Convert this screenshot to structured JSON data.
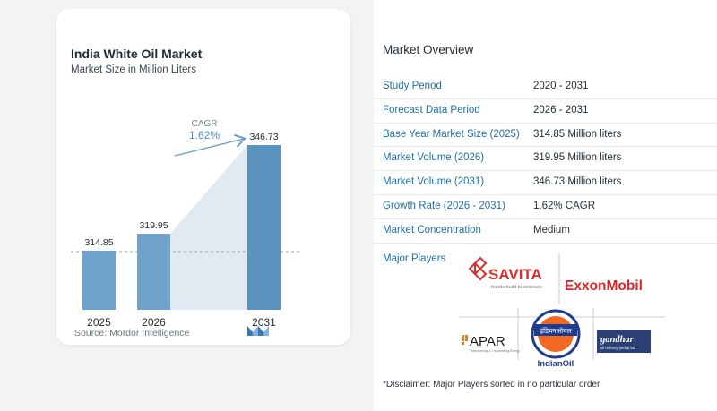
{
  "chart": {
    "title": "India White Oil Market",
    "subtitle": "Market Size in Million Liters",
    "cagr_label": "CAGR",
    "cagr_value": "1.62%",
    "source": "Source:  Mordor Intelligence"
  },
  "chart_data": {
    "type": "bar",
    "categories": [
      "2025",
      "2026",
      "2031"
    ],
    "values": [
      314.85,
      319.95,
      346.73
    ],
    "value_labels": [
      "314.85",
      "319.95",
      "346.73"
    ],
    "title": "India White Oil Market",
    "subtitle": "Market Size in Million Liters",
    "xlabel": "",
    "ylabel": "",
    "ylim": [
      0,
      346.73
    ],
    "grid": false,
    "annotations": [
      "CAGR",
      "1.62%"
    ],
    "colors": {
      "bar": "#5b93bf",
      "bar_light": "#6fa3cb",
      "area": "#dfeaf3",
      "arrow": "#6a9dc7"
    }
  },
  "overview": {
    "title": "Market Overview",
    "rows": [
      {
        "label": "Study Period",
        "value": "2020 - 2031"
      },
      {
        "label": "Forecast Data Period",
        "value": "2026 - 2031"
      },
      {
        "label": "Base Year Market Size (2025)",
        "value": "314.85 Million liters"
      },
      {
        "label": "Market Volume (2026)",
        "value": "319.95 Million liters"
      },
      {
        "label": "Market Volume (2031)",
        "value": "346.73 Million liters"
      },
      {
        "label": "Growth Rate (2026 - 2031)",
        "value": "1.62% CAGR"
      },
      {
        "label": "Market Concentration",
        "value": "Medium"
      }
    ],
    "players_label": "Major Players",
    "players": {
      "savita": "SAVITA",
      "savita_tag": "bonds build businesses",
      "exxon": "ExxonMobil",
      "apar": "APAR",
      "apar_tag": "Transforming & Transmitting Energy",
      "indianoil": "IndianOil",
      "indianoil_hindi": "इंडियनऑयल",
      "gandhar": "gandhar",
      "gandhar_tag": "oil refinery (India) ltd."
    },
    "disclaimer": "*Disclaimer: Major Players sorted in no particular order"
  }
}
